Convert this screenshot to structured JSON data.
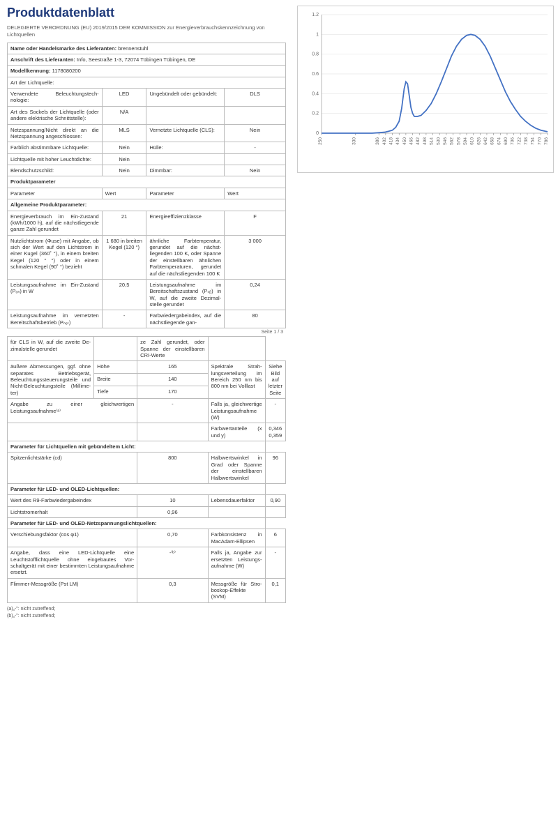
{
  "title": "Produktdatenblatt",
  "subtitle": "DELEGIERTE VERORDNUNG (EU) 2019/2015 DER KOMMISSION zur Energieverbrauchskennzeichnung von Lichtquellen",
  "header_rows": [
    {
      "label": "Name oder Handelsmarke des Lieferanten:",
      "value": "brennenstuhl"
    },
    {
      "label": "Anschrift des Lieferanten:",
      "value": "Info, Seestraße 1-3, 72074 Tübingen Tübingen, DE"
    },
    {
      "label": "Modellkennung:",
      "value": "1178080200"
    }
  ],
  "art_section": {
    "title": "Art der Lichtquelle:",
    "rows": [
      {
        "l": "Verwendete Beleuchtungstech­nologie:",
        "lv": "LED",
        "r": "Ungebündelt oder gebündelt:",
        "rv": "DLS"
      },
      {
        "l": "Art des Sockels der Lichtquelle (oder andere elektrische Schnittstelle):",
        "lv": "N/A",
        "r": "",
        "rv": ""
      },
      {
        "l": "Netzspannung/Nicht direkt an die Netzspannung angeschlos­sen:",
        "lv": "MLS",
        "r": "Vernetzte Lichtquel­le (CLS):",
        "rv": "Nein"
      },
      {
        "l": "Farblich abstimmbare Licht­quelle:",
        "lv": "Nein",
        "r": "Hülle:",
        "rv": "-"
      },
      {
        "l": "Lichtquelle mit hoher Leucht­dichte:",
        "lv": "Nein",
        "r": "",
        "rv": ""
      },
      {
        "l": "Blendschutzschild:",
        "lv": "Nein",
        "r": "Dimmbar:",
        "rv": "Nein"
      }
    ]
  },
  "prod_params_title": "Produktparameter",
  "col_headers": {
    "p": "Parameter",
    "w": "Wert"
  },
  "general_section": {
    "title": "Allgemeine Produktparameter:",
    "rows": [
      {
        "l": "Energieverbrauch im Ein-Zu­stand (kWh/1000 h), auf die nächstliegende ganze Zahl ge­rundet",
        "lv": "21",
        "r": "Energieeffizienzklas­se",
        "rv": "F"
      },
      {
        "l": "Nutzlichtstrom (Φuse) mit An­gabe, ob sich der Wert auf den Lichtstrom in einer Kugel (360˚ °), in einem breiten Kegel (120 ° °) oder in einem schmalen Kegel (90˚ °) bezieht",
        "lv": "1 680 in brei­ten Kegel (120 °)",
        "r": "ähnliche Farbtem­peratur, gerundet auf die nächst­liegenden 100 K, oder Spanne der einstellbaren ähnli­chen Farbtempera­turen, gerundet auf die nächstliegenden 100 K",
        "rv": "3 000"
      },
      {
        "l": "Leistungsaufnahme im Ein-Zu­stand (Pₒₙ) in W",
        "lv": "20,5",
        "r": "Leistungsaufnahme im Bereitschaftszu­stand (Pₛᵦ) in W, auf die zweite Dezimal­stelle gerundet",
        "rv": "0,24"
      },
      {
        "l": "Leistungsaufnahme im vernetz­ten Bereitschaftsbetrieb (Pₙₑₜ)",
        "lv": "-",
        "r": "Farbwiedergabein­dex, auf die nächstliegende gan-",
        "rv": "80"
      }
    ],
    "continuation": {
      "l": "für CLS in W, auf die zweite De­zimalstelle gerundet",
      "lv": "",
      "r": "ze Zahl gerundet, oder Spanne der ein­stellbaren CRI-Wer­te",
      "rv": ""
    }
  },
  "page_indicator": "Seite 1 / 3",
  "dimensions_row": {
    "main_label": "äußere Ab­messungen, ggf. ohne se­parates Be­triebsgerät, Beleuchtungs­steuerungstei­le und Nicht-Beleuchtungs­teile (Millime­ter)",
    "sub": [
      {
        "k": "Höhe",
        "v": "165"
      },
      {
        "k": "Breite",
        "v": "140"
      },
      {
        "k": "Tiefe",
        "v": "170"
      }
    ],
    "r": "Spektrale Strah­lungsverteilung im Bereich 250 nm bis 800 nm bei Volllast",
    "rv": "Siehe Bild auf letzter Seite"
  },
  "equiv_power_row": {
    "l": "Angabe zu einer gleichwertigen Leistungsaufnahme⁽ᵃ⁾",
    "lv": "-",
    "r": "Falls ja, gleichwerti­ge Leistungsaufnah­me (W)",
    "rv": "-"
  },
  "chromaticity_row": {
    "l": "",
    "lv": "",
    "r": "Farbwertanteile (x und y)",
    "rv": "0,346\n0,359"
  },
  "bundled_section": {
    "title": "Parameter für Lichtquellen mit gebündeltem Licht:",
    "rows": [
      {
        "l": "Spitzenlichtstärke (cd)",
        "lv": "800",
        "r": "Halbwertswinkel in Grad oder Span­ne der einstellbaren Halbwertswinkel",
        "rv": "96"
      }
    ]
  },
  "led_section": {
    "title": "Parameter für LED- und OLED-Lichtquellen:",
    "rows": [
      {
        "l": "Wert des R9-Farbwiedergabein­dex",
        "lv": "10",
        "r": "Lebensdauerfaktor",
        "rv": "0,90"
      },
      {
        "l": "Lichtstromerhalt",
        "lv": "0,96",
        "r": "",
        "rv": ""
      }
    ]
  },
  "mains_section": {
    "title": "Parameter für LED- und OLED-Netzspannungslichtquellen:",
    "rows": [
      {
        "l": "Verschiebungsfaktor (cos φ1)",
        "lv": "0,70",
        "r": "Farbkonsistenz in MacAdam-Ellipsen",
        "rv": "6"
      },
      {
        "l": "Angabe, dass eine LED-Licht­quelle eine Leuchtstofflicht­quelle ohne eingebautes Vor­schaltgerät mit einer bestimm­ten Leistungsaufnahme ersetzt.",
        "lv": "-⁽ᵇ⁾",
        "r": "Falls ja, Angabe zur ersetzten Leistungs­aufnahme (W)",
        "rv": "-"
      },
      {
        "l": "Flimmer-Messgröße (Pst LM)",
        "lv": "0,3",
        "r": "Messgröße für Stro­boskop-Effekte (SVM)",
        "rv": "0,1"
      }
    ]
  },
  "footnotes": [
    "(a)„-\": nicht zutreffend;",
    "(b)„-\": nicht zutreffend;"
  ],
  "chart": {
    "type": "line",
    "xmin": 250,
    "xmax": 786,
    "ymin": 0,
    "ymax": 1.2,
    "ytick_step": 0.2,
    "xtick_step": 16,
    "line_color": "#4472c4",
    "grid_color": "#dddddd",
    "axis_color": "#888888",
    "background": "#ffffff",
    "yticks": [
      0,
      0.2,
      0.4,
      0.6,
      0.8,
      1,
      1.2
    ],
    "xticks": [
      250,
      330,
      386,
      402,
      418,
      434,
      450,
      466,
      482,
      498,
      514,
      530,
      546,
      562,
      578,
      594,
      610,
      626,
      642,
      658,
      674,
      690,
      706,
      722,
      738,
      754,
      770,
      786
    ],
    "points": [
      [
        250,
        0.0
      ],
      [
        330,
        0.0
      ],
      [
        370,
        0.0
      ],
      [
        386,
        0.005
      ],
      [
        400,
        0.01
      ],
      [
        410,
        0.02
      ],
      [
        418,
        0.03
      ],
      [
        426,
        0.06
      ],
      [
        434,
        0.12
      ],
      [
        440,
        0.25
      ],
      [
        446,
        0.45
      ],
      [
        450,
        0.52
      ],
      [
        454,
        0.5
      ],
      [
        458,
        0.38
      ],
      [
        462,
        0.26
      ],
      [
        466,
        0.2
      ],
      [
        470,
        0.17
      ],
      [
        478,
        0.17
      ],
      [
        486,
        0.18
      ],
      [
        498,
        0.23
      ],
      [
        510,
        0.3
      ],
      [
        522,
        0.4
      ],
      [
        534,
        0.52
      ],
      [
        546,
        0.65
      ],
      [
        558,
        0.78
      ],
      [
        570,
        0.88
      ],
      [
        582,
        0.95
      ],
      [
        594,
        0.99
      ],
      [
        604,
        1.0
      ],
      [
        614,
        0.99
      ],
      [
        626,
        0.95
      ],
      [
        638,
        0.88
      ],
      [
        650,
        0.78
      ],
      [
        662,
        0.66
      ],
      [
        674,
        0.54
      ],
      [
        686,
        0.42
      ],
      [
        698,
        0.32
      ],
      [
        710,
        0.24
      ],
      [
        722,
        0.17
      ],
      [
        734,
        0.12
      ],
      [
        746,
        0.08
      ],
      [
        758,
        0.05
      ],
      [
        770,
        0.03
      ],
      [
        780,
        0.02
      ],
      [
        786,
        0.015
      ]
    ]
  }
}
